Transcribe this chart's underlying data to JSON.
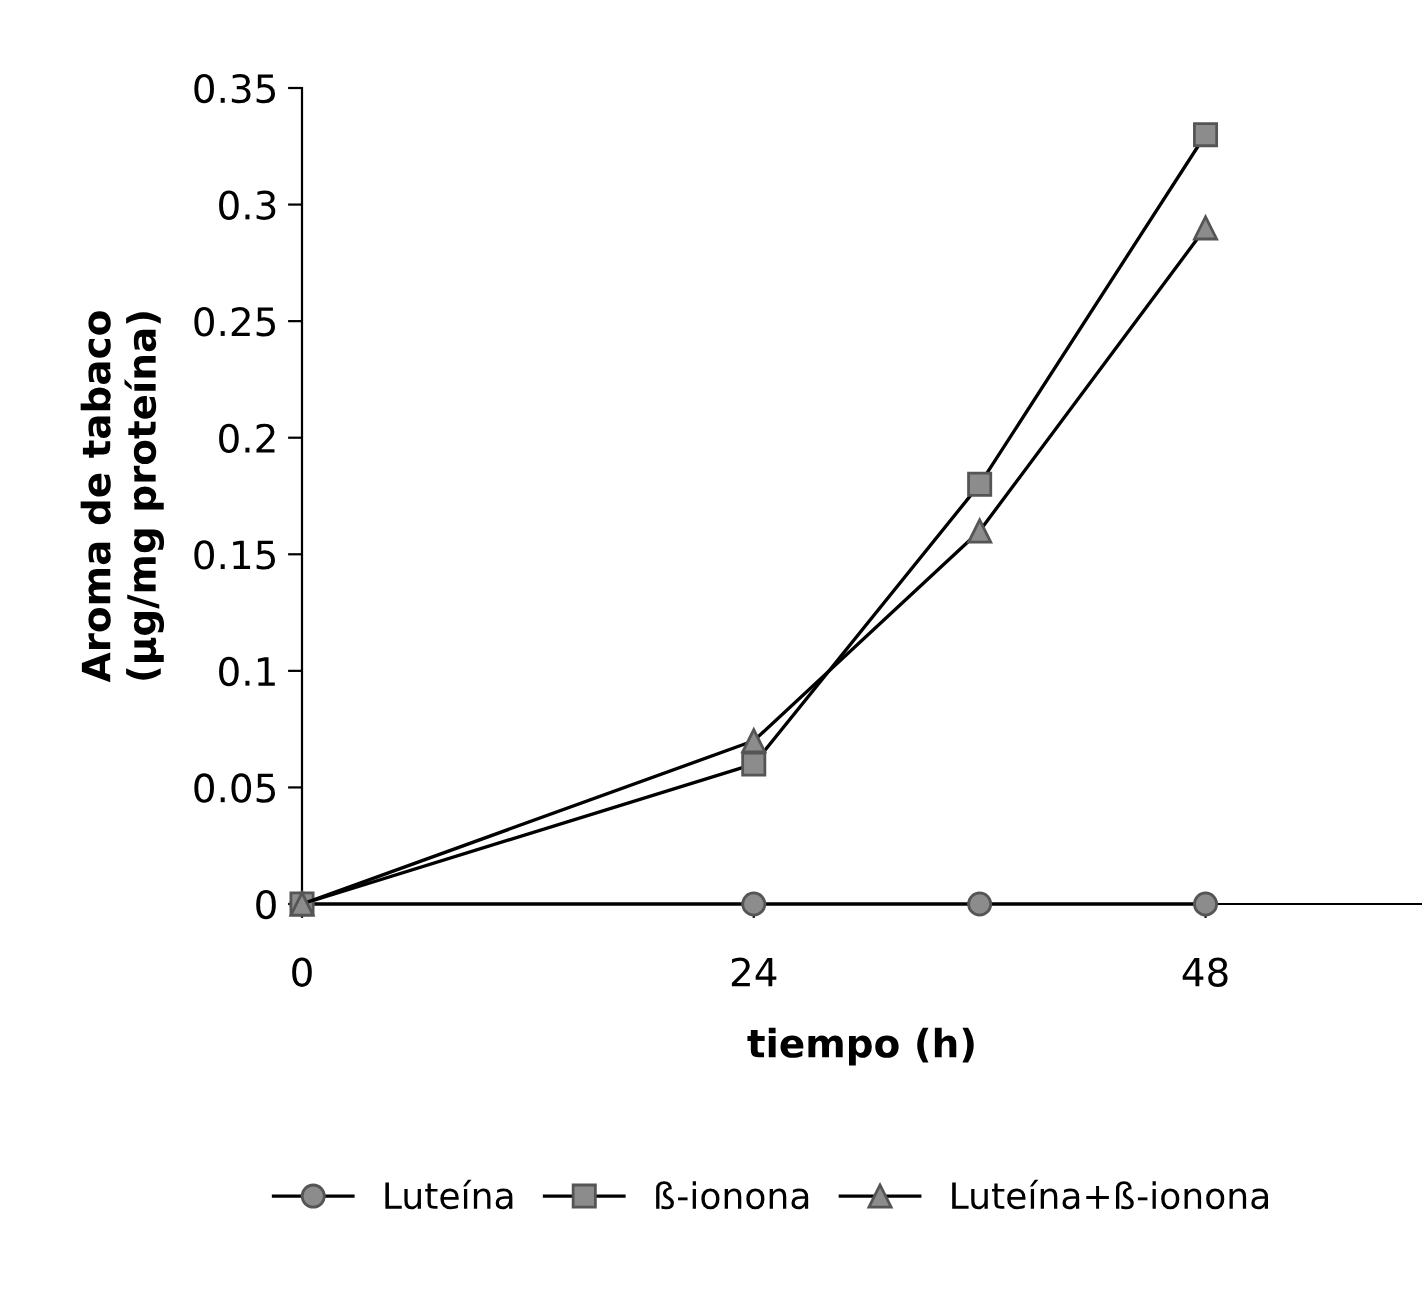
{
  "chart_data": {
    "type": "line",
    "xlabel": "tiempo (h)",
    "ylabel": "Aroma de tabaco\n(µg/mg proteína)",
    "x": [
      0,
      24,
      36,
      48
    ],
    "series": [
      {
        "name": "Luteína",
        "color": "#8c8c8c",
        "values": [
          0,
          0,
          0,
          0
        ],
        "marker": "circle"
      },
      {
        "name": "ß-ionona",
        "color": "#8c8c8c",
        "values": [
          0,
          0.06,
          0.18,
          0.33
        ],
        "marker": "square"
      },
      {
        "name": "Luteína+ß-ionona",
        "color": "#8c8c8c",
        "values": [
          0,
          0.07,
          0.16,
          0.29
        ],
        "marker": "triangle"
      }
    ],
    "xlim": [
      0,
      59.5
    ],
    "ylim": [
      0,
      0.35
    ],
    "xticks": [
      0,
      24,
      48
    ],
    "yticks": [
      0,
      0.05,
      0.1,
      0.15,
      0.2,
      0.25,
      0.3,
      0.35
    ],
    "grid": false,
    "legend": "bottom",
    "line_style": "solid"
  }
}
